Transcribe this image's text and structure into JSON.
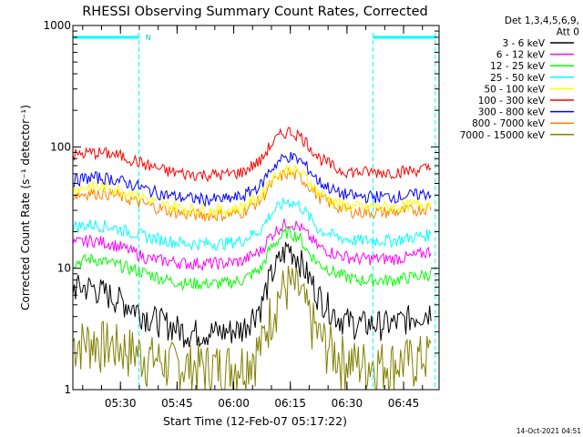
{
  "chart_data": {
    "type": "line",
    "title": "RHESSI Observing Summary Count Rates, Corrected",
    "xlabel": "Start Time (12-Feb-07 05:17:22)",
    "ylabel": "Corrected Count Rate (s⁻¹ detector⁻¹)",
    "yscale": "log",
    "ylim": [
      1,
      1000
    ],
    "xlim_minutes": [
      0,
      97
    ],
    "yticks": [
      {
        "value": 1,
        "label": "1"
      },
      {
        "value": 10,
        "label": "10"
      },
      {
        "value": 100,
        "label": "100"
      },
      {
        "value": 1000,
        "label": "1000"
      }
    ],
    "xticks": [
      {
        "minute": 12.6,
        "label": "05:30"
      },
      {
        "minute": 27.6,
        "label": "05:45"
      },
      {
        "minute": 42.6,
        "label": "06:00"
      },
      {
        "minute": 57.6,
        "label": "06:15"
      },
      {
        "minute": 72.6,
        "label": "06:30"
      },
      {
        "minute": 87.6,
        "label": "06:45"
      }
    ],
    "legend": {
      "placement": "right",
      "header": [
        "Det 1,3,4,5,6,9,",
        "Att 0"
      ]
    },
    "night_intervals_minutes": [
      [
        0,
        17.5
      ],
      [
        79.5,
        96
      ]
    ],
    "saa_marker": {
      "label": "N",
      "minute": 18.5
    },
    "x": [
      0,
      5,
      10,
      15,
      20,
      25,
      30,
      35,
      40,
      45,
      50,
      52,
      55,
      57,
      60,
      62,
      65,
      70,
      75,
      80,
      85,
      90,
      95
    ],
    "series": [
      {
        "name": "3 - 6 keV",
        "color": "#000000",
        "values": [
          7,
          7,
          6,
          5,
          4,
          3.5,
          3,
          3,
          3,
          3.2,
          5,
          8,
          12,
          15,
          12,
          9,
          6,
          4,
          3.5,
          3.5,
          3.5,
          4,
          4.5
        ]
      },
      {
        "name": "6 - 12 keV",
        "color": "#ff00ff",
        "values": [
          16,
          17,
          16,
          14,
          12,
          11.5,
          11,
          11,
          11,
          11.5,
          14,
          18,
          22,
          24,
          22,
          19,
          15,
          13,
          12,
          12,
          12,
          12.5,
          14
        ]
      },
      {
        "name": "12 - 25 keV",
        "color": "#00ff00",
        "values": [
          11,
          12,
          11,
          10,
          9,
          8,
          7.5,
          7.5,
          7.5,
          8,
          10,
          14,
          18,
          20,
          18,
          14,
          11,
          9,
          8,
          8,
          8,
          8.5,
          9
        ]
      },
      {
        "name": "25 - 50 keV",
        "color": "#00ffff",
        "values": [
          22,
          23,
          22,
          20,
          18,
          17,
          16,
          16,
          16,
          17,
          21,
          27,
          33,
          36,
          33,
          28,
          21,
          18,
          17,
          17,
          17,
          18,
          19
        ]
      },
      {
        "name": "50 - 100 keV",
        "color": "#ffff00",
        "values": [
          45,
          47,
          46,
          42,
          37,
          33,
          31,
          30,
          30,
          32,
          40,
          52,
          62,
          66,
          62,
          55,
          42,
          34,
          32,
          32,
          32,
          33,
          35
        ]
      },
      {
        "name": "100 - 300 keV",
        "color": "#ff0000",
        "values": [
          85,
          90,
          88,
          80,
          70,
          63,
          60,
          59,
          59,
          62,
          78,
          100,
          125,
          135,
          125,
          108,
          82,
          65,
          62,
          62,
          62,
          64,
          67
        ]
      },
      {
        "name": "300 - 800 keV",
        "color": "#0000ff",
        "values": [
          53,
          56,
          55,
          50,
          44,
          40,
          38,
          37,
          37,
          39,
          49,
          63,
          78,
          84,
          78,
          68,
          52,
          42,
          39,
          39,
          39,
          40,
          42
        ]
      },
      {
        "name": "800 - 7000 keV",
        "color": "#ff8000",
        "values": [
          40,
          42,
          41,
          37,
          33,
          30,
          28,
          27.5,
          27.5,
          29,
          37,
          47,
          57,
          61,
          57,
          50,
          39,
          32,
          29,
          29,
          29,
          30,
          32
        ]
      },
      {
        "name": "7000 - 15000 keV",
        "color": "#808000",
        "values": [
          2.5,
          2.6,
          2.4,
          2.2,
          1.9,
          1.7,
          1.6,
          1.6,
          1.6,
          1.7,
          2.3,
          4,
          6.5,
          7.5,
          6.5,
          4.5,
          2.8,
          2,
          1.7,
          1.7,
          1.7,
          1.8,
          2
        ]
      }
    ]
  },
  "footer": {
    "timestamp": "14-Oct-2021 04:51"
  }
}
